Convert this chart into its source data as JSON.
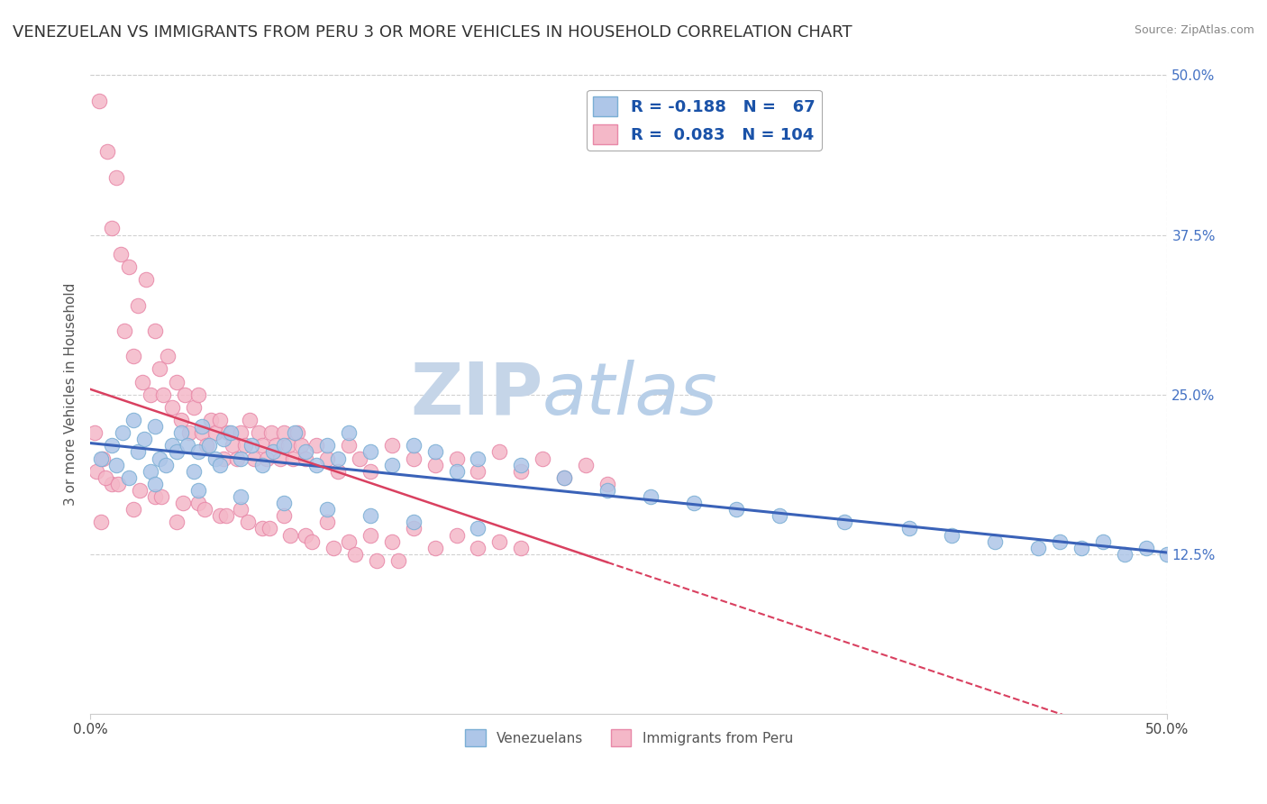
{
  "title": "VENEZUELAN VS IMMIGRANTS FROM PERU 3 OR MORE VEHICLES IN HOUSEHOLD CORRELATION CHART",
  "source": "Source: ZipAtlas.com",
  "ylabel": "3 or more Vehicles in Household",
  "xlim": [
    0.0,
    50.0
  ],
  "ylim": [
    0.0,
    50.0
  ],
  "xtick_labels": [
    "0.0%",
    "50.0%"
  ],
  "xtick_vals": [
    0.0,
    50.0
  ],
  "ytick_labels": [
    "12.5%",
    "25.0%",
    "37.5%",
    "50.0%"
  ],
  "ytick_vals": [
    12.5,
    25.0,
    37.5,
    50.0
  ],
  "blue_color": "#aec6e8",
  "blue_edge": "#7aaed4",
  "pink_color": "#f4b8c8",
  "pink_edge": "#e888a8",
  "blue_line_color": "#3a62b8",
  "pink_line_color": "#d94060",
  "R_blue": -0.188,
  "N_blue": 67,
  "R_pink": 0.083,
  "N_pink": 104,
  "legend_blue_label": "R = -0.188   N =   67",
  "legend_pink_label": "R =  0.083   N = 104",
  "legend_blue_name": "Venezuelans",
  "legend_pink_name": "Immigrants from Peru",
  "watermark": "ZIPatlas",
  "watermark_color": "#c8d8ec",
  "background_color": "#ffffff",
  "grid_color": "#cccccc",
  "title_fontsize": 13,
  "axis_label_fontsize": 11,
  "tick_fontsize": 11,
  "tick_color": "#4472c4",
  "blue_x": [
    0.5,
    1.0,
    1.2,
    1.5,
    1.8,
    2.0,
    2.2,
    2.5,
    2.8,
    3.0,
    3.2,
    3.5,
    3.8,
    4.0,
    4.2,
    4.5,
    4.8,
    5.0,
    5.2,
    5.5,
    5.8,
    6.0,
    6.2,
    6.5,
    7.0,
    7.5,
    8.0,
    8.5,
    9.0,
    9.5,
    10.0,
    10.5,
    11.0,
    11.5,
    12.0,
    13.0,
    14.0,
    15.0,
    16.0,
    17.0,
    18.0,
    20.0,
    22.0,
    24.0,
    26.0,
    28.0,
    30.0,
    32.0,
    35.0,
    38.0,
    40.0,
    42.0,
    44.0,
    45.0,
    46.0,
    47.0,
    48.0,
    49.0,
    50.0,
    3.0,
    5.0,
    7.0,
    9.0,
    11.0,
    13.0,
    15.0,
    18.0
  ],
  "blue_y": [
    20.0,
    21.0,
    19.5,
    22.0,
    18.5,
    23.0,
    20.5,
    21.5,
    19.0,
    22.5,
    20.0,
    19.5,
    21.0,
    20.5,
    22.0,
    21.0,
    19.0,
    20.5,
    22.5,
    21.0,
    20.0,
    19.5,
    21.5,
    22.0,
    20.0,
    21.0,
    19.5,
    20.5,
    21.0,
    22.0,
    20.5,
    19.5,
    21.0,
    20.0,
    22.0,
    20.5,
    19.5,
    21.0,
    20.5,
    19.0,
    20.0,
    19.5,
    18.5,
    17.5,
    17.0,
    16.5,
    16.0,
    15.5,
    15.0,
    14.5,
    14.0,
    13.5,
    13.0,
    13.5,
    13.0,
    13.5,
    12.5,
    13.0,
    12.5,
    18.0,
    17.5,
    17.0,
    16.5,
    16.0,
    15.5,
    15.0,
    14.5
  ],
  "pink_x": [
    0.2,
    0.4,
    0.6,
    0.8,
    1.0,
    1.2,
    1.4,
    1.6,
    1.8,
    2.0,
    2.2,
    2.4,
    2.6,
    2.8,
    3.0,
    3.2,
    3.4,
    3.6,
    3.8,
    4.0,
    4.2,
    4.4,
    4.6,
    4.8,
    5.0,
    5.2,
    5.4,
    5.6,
    5.8,
    6.0,
    6.2,
    6.4,
    6.6,
    6.8,
    7.0,
    7.2,
    7.4,
    7.6,
    7.8,
    8.0,
    8.2,
    8.4,
    8.6,
    8.8,
    9.0,
    9.2,
    9.4,
    9.6,
    9.8,
    10.0,
    10.5,
    11.0,
    11.5,
    12.0,
    12.5,
    13.0,
    14.0,
    15.0,
    16.0,
    17.0,
    18.0,
    19.0,
    20.0,
    21.0,
    22.0,
    23.0,
    24.0,
    0.5,
    1.0,
    2.0,
    3.0,
    4.0,
    5.0,
    6.0,
    7.0,
    8.0,
    9.0,
    10.0,
    11.0,
    12.0,
    13.0,
    14.0,
    15.0,
    16.0,
    17.0,
    18.0,
    19.0,
    20.0,
    0.3,
    0.7,
    1.3,
    2.3,
    3.3,
    4.3,
    5.3,
    6.3,
    7.3,
    8.3,
    9.3,
    10.3,
    11.3,
    12.3,
    13.3,
    14.3
  ],
  "pink_y": [
    22.0,
    48.0,
    20.0,
    44.0,
    38.0,
    42.0,
    36.0,
    30.0,
    35.0,
    28.0,
    32.0,
    26.0,
    34.0,
    25.0,
    30.0,
    27.0,
    25.0,
    28.0,
    24.0,
    26.0,
    23.0,
    25.0,
    22.0,
    24.0,
    25.0,
    22.0,
    21.0,
    23.0,
    22.0,
    23.0,
    20.0,
    22.0,
    21.0,
    20.0,
    22.0,
    21.0,
    23.0,
    20.0,
    22.0,
    21.0,
    20.0,
    22.0,
    21.0,
    20.0,
    22.0,
    21.0,
    20.0,
    22.0,
    21.0,
    20.0,
    21.0,
    20.0,
    19.0,
    21.0,
    20.0,
    19.0,
    21.0,
    20.0,
    19.5,
    20.0,
    19.0,
    20.5,
    19.0,
    20.0,
    18.5,
    19.5,
    18.0,
    15.0,
    18.0,
    16.0,
    17.0,
    15.0,
    16.5,
    15.5,
    16.0,
    14.5,
    15.5,
    14.0,
    15.0,
    13.5,
    14.0,
    13.5,
    14.5,
    13.0,
    14.0,
    13.0,
    13.5,
    13.0,
    19.0,
    18.5,
    18.0,
    17.5,
    17.0,
    16.5,
    16.0,
    15.5,
    15.0,
    14.5,
    14.0,
    13.5,
    13.0,
    12.5,
    12.0,
    12.0
  ]
}
